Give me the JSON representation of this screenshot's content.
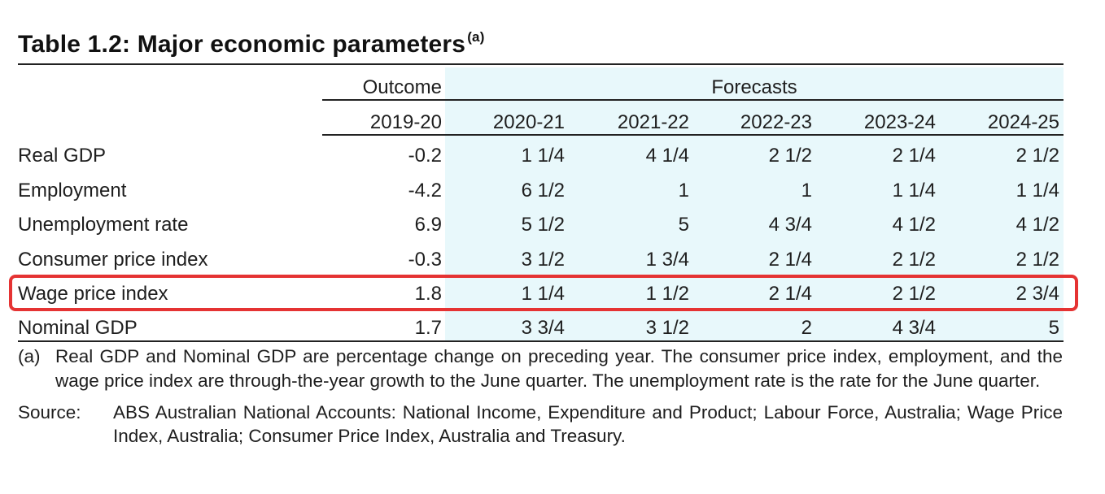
{
  "title": "Table 1.2: Major economic parameters",
  "title_footnote_marker": "(a)",
  "header": {
    "outcome_label": "Outcome",
    "forecasts_label": "Forecasts",
    "years": [
      "2019-20",
      "2020-21",
      "2021-22",
      "2022-23",
      "2023-24",
      "2024-25"
    ]
  },
  "rows": [
    {
      "label": "Real GDP",
      "values": [
        "-0.2",
        "1 1/4",
        "4 1/4",
        "2 1/2",
        "2 1/4",
        "2 1/2"
      ]
    },
    {
      "label": "Employment",
      "values": [
        "-4.2",
        "6 1/2",
        "1",
        "1",
        "1 1/4",
        "1 1/4"
      ]
    },
    {
      "label": "Unemployment rate",
      "values": [
        "6.9",
        "5 1/2",
        "5",
        "4 3/4",
        "4 1/2",
        "4 1/2"
      ]
    },
    {
      "label": "Consumer price index",
      "values": [
        "-0.3",
        "3 1/2",
        "1 3/4",
        "2 1/4",
        "2 1/2",
        "2 1/2"
      ]
    },
    {
      "label": "Wage price index",
      "values": [
        "1.8",
        "1 1/4",
        "1 1/2",
        "2 1/4",
        "2 1/2",
        "2 3/4"
      ],
      "highlighted": true
    },
    {
      "label": "Nominal GDP",
      "values": [
        "1.7",
        "3 3/4",
        "3 1/2",
        "2",
        "4 3/4",
        "5"
      ]
    }
  ],
  "notes": {
    "a_marker": "(a)",
    "a_text": "Real GDP and Nominal GDP are percentage change on preceding year. The consumer price index, employment, and the wage price index are through-the-year growth to the June quarter. The unemployment rate is the rate for the June quarter.",
    "source_marker": "Source:",
    "source_text": "ABS Australian National Accounts: National Income, Expenditure and Product; Labour Force, Australia; Wage Price Index, Australia; Consumer Price Index, Australia and Treasury."
  },
  "colors": {
    "forecast_background": "#e8f8fb",
    "highlight_border": "#e53333",
    "rule": "#222222"
  }
}
